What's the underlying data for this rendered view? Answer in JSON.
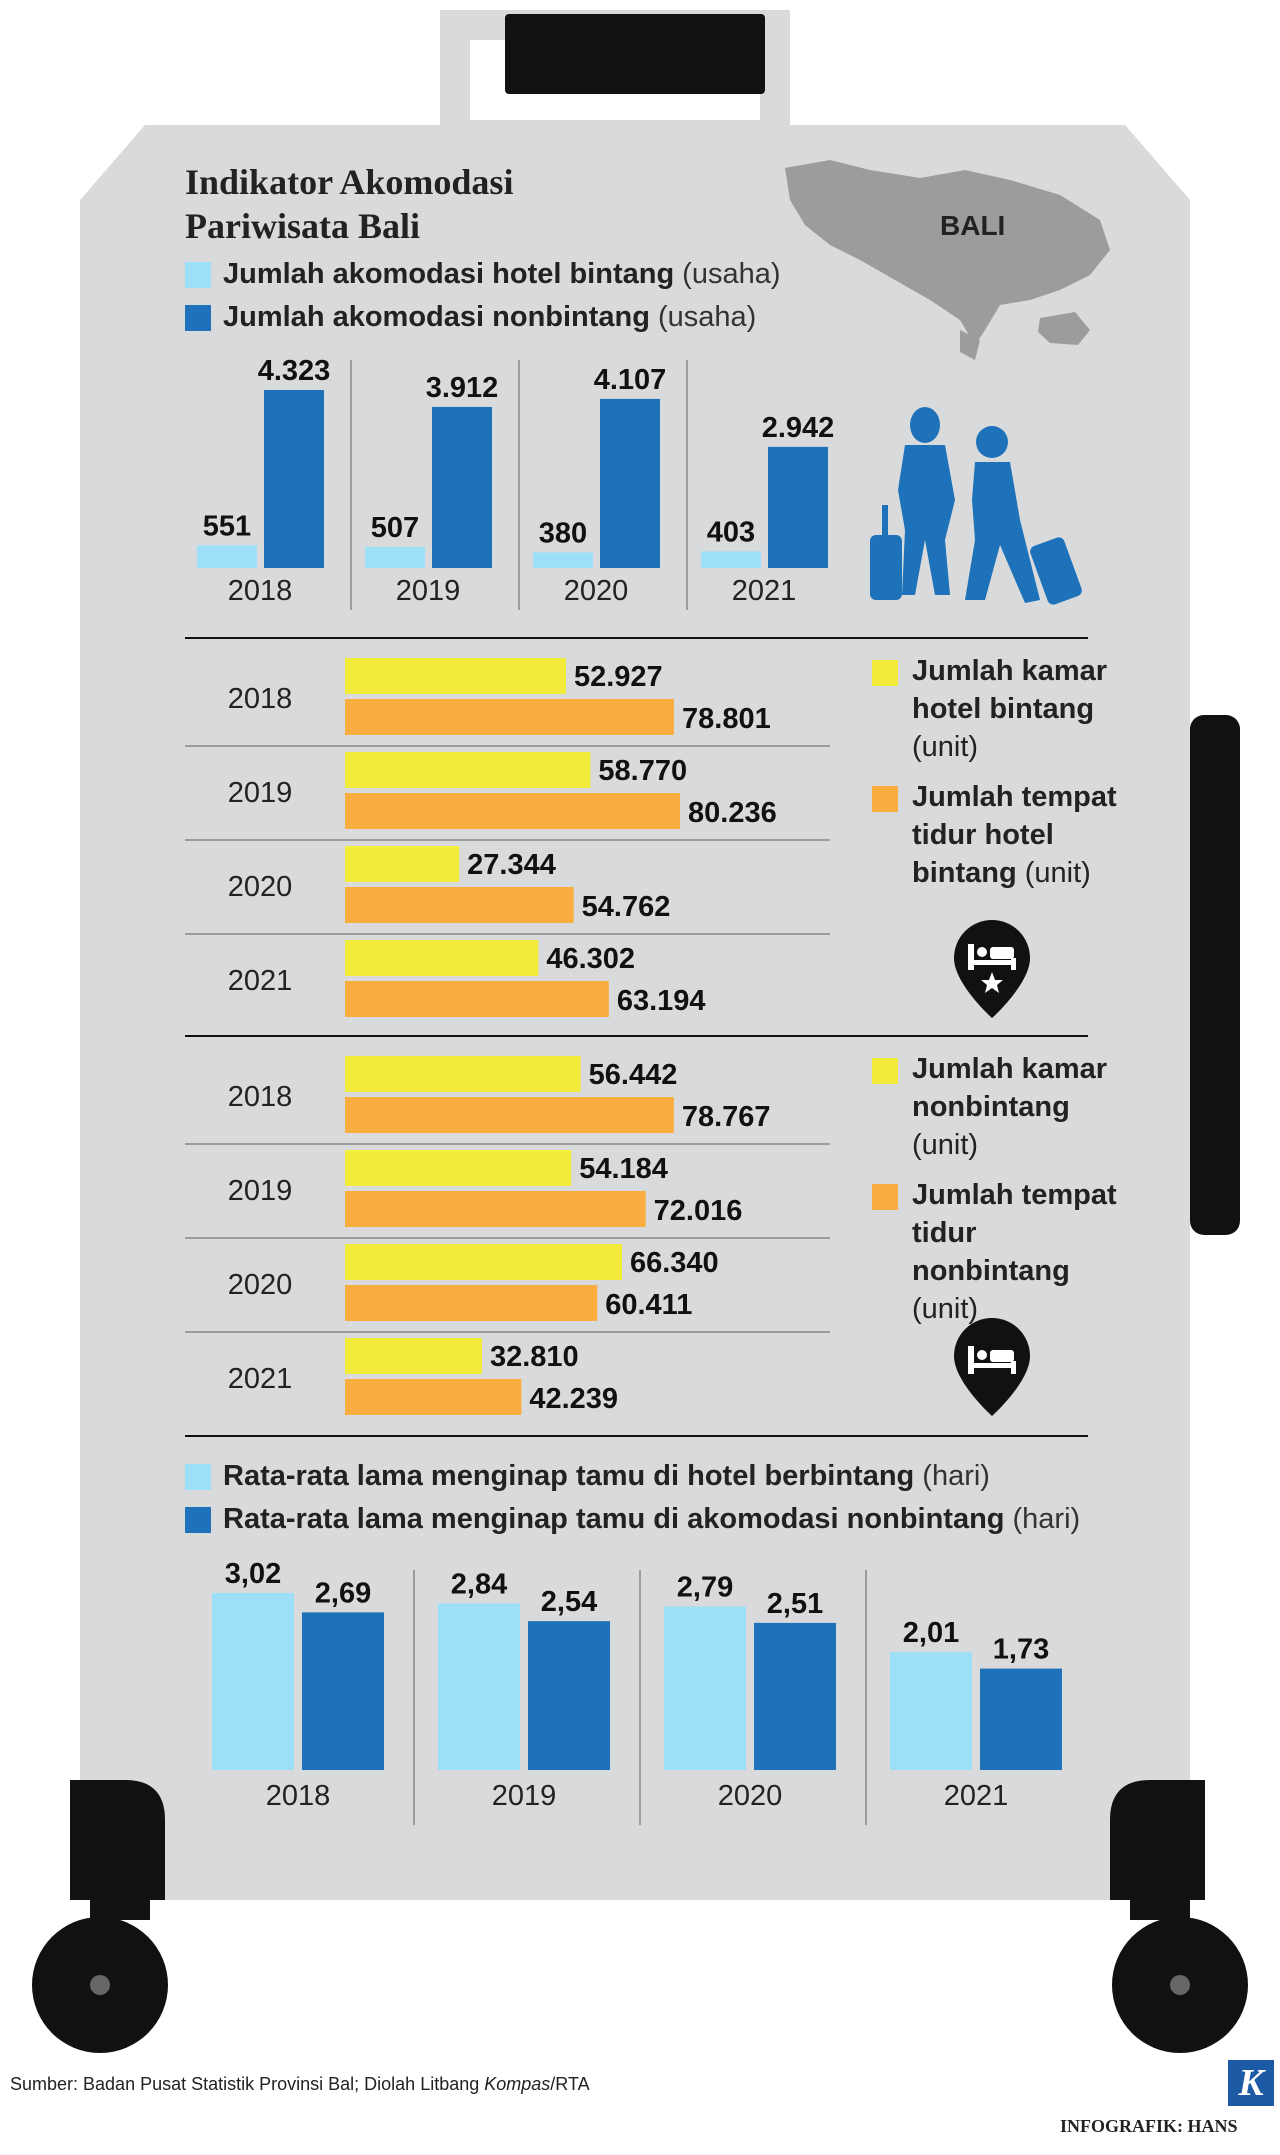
{
  "title": "Indikator Akomodasi Pariwisata Bali",
  "title_lines": [
    "Indikator Akomodasi",
    "Pariwisata Bali"
  ],
  "map_label": "BALI",
  "colors": {
    "light_blue": "#9edff8",
    "dark_blue": "#1e72b9",
    "yellow": "#f4ec3a",
    "orange": "#f9ae3f",
    "suitcase": "#d9dadb",
    "black": "#111111"
  },
  "legend_top": [
    {
      "label": "Jumlah akomodasi hotel bintang",
      "unit": "(usaha)"
    },
    {
      "label": "Jumlah akomodasi nonbintang",
      "unit": "(usaha)"
    }
  ],
  "legend_mid1": [
    {
      "lines": [
        "Jumlah kamar",
        "hotel bintang"
      ],
      "unit": "(unit)"
    },
    {
      "lines": [
        "Jumlah tempat",
        "tidur hotel",
        "bintang"
      ],
      "unit": "(unit)"
    }
  ],
  "legend_mid2": [
    {
      "lines": [
        "Jumlah kamar",
        "nonbintang"
      ],
      "unit": "(unit)"
    },
    {
      "lines": [
        "Jumlah tempat",
        "tidur nonbintang"
      ],
      "unit": "(unit)"
    }
  ],
  "legend_bottom": [
    {
      "label": "Rata-rata lama menginap tamu di hotel berbintang",
      "unit": "(hari)"
    },
    {
      "label": "Rata-rata lama menginap tamu di akomodasi nonbintang",
      "unit": "(hari)"
    }
  ],
  "footer": {
    "source_prefix": "Sumber: Badan Pusat Statistik Provinsi Bal; Diolah Litbang ",
    "source_italic": "Kompas",
    "source_suffix": "/RTA",
    "credit": "INFOGRAFIK: HANS",
    "logo": "K"
  },
  "chart_data": [
    {
      "type": "bar",
      "title": "Jumlah akomodasi",
      "categories": [
        "2018",
        "2019",
        "2020",
        "2021"
      ],
      "series": [
        {
          "name": "Jumlah akomodasi hotel bintang (usaha)",
          "values": [
            551,
            507,
            380,
            403
          ],
          "labels": [
            "551",
            "507",
            "380",
            "403"
          ]
        },
        {
          "name": "Jumlah akomodasi nonbintang (usaha)",
          "values": [
            4323,
            3912,
            4107,
            2942
          ],
          "labels": [
            "4.323",
            "3.912",
            "4.107",
            "2.942"
          ]
        }
      ],
      "ylim": [
        0,
        4500
      ]
    },
    {
      "type": "bar",
      "orientation": "horizontal",
      "title": "Hotel bintang",
      "categories": [
        "2018",
        "2019",
        "2020",
        "2021"
      ],
      "series": [
        {
          "name": "Jumlah kamar hotel bintang (unit)",
          "values": [
            52927,
            58770,
            27344,
            46302
          ],
          "labels": [
            "52.927",
            "58.770",
            "27.344",
            "46.302"
          ]
        },
        {
          "name": "Jumlah tempat tidur hotel bintang (unit)",
          "values": [
            78801,
            80236,
            54762,
            63194
          ],
          "labels": [
            "78.801",
            "80.236",
            "54.762",
            "63.194"
          ]
        }
      ],
      "xlim": [
        0,
        80236
      ]
    },
    {
      "type": "bar",
      "orientation": "horizontal",
      "title": "Nonbintang",
      "categories": [
        "2018",
        "2019",
        "2020",
        "2021"
      ],
      "series": [
        {
          "name": "Jumlah kamar nonbintang (unit)",
          "values": [
            56442,
            54184,
            66340,
            32810
          ],
          "labels": [
            "56.442",
            "54.184",
            "66.340",
            "32.810"
          ]
        },
        {
          "name": "Jumlah tempat tidur nonbintang (unit)",
          "values": [
            78767,
            72016,
            60411,
            42239
          ],
          "labels": [
            "78.767",
            "72.016",
            "60.411",
            "42.239"
          ]
        }
      ],
      "xlim": [
        0,
        80236
      ]
    },
    {
      "type": "bar",
      "title": "Rata-rata lama menginap",
      "categories": [
        "2018",
        "2019",
        "2020",
        "2021"
      ],
      "series": [
        {
          "name": "Rata-rata lama menginap tamu di hotel berbintang (hari)",
          "values": [
            3.02,
            2.84,
            2.79,
            2.01
          ],
          "labels": [
            "3,02",
            "2,84",
            "2,79",
            "2,01"
          ]
        },
        {
          "name": "Rata-rata lama menginap tamu di akomodasi nonbintang (hari)",
          "values": [
            2.69,
            2.54,
            2.51,
            1.73
          ],
          "labels": [
            "2,69",
            "2,54",
            "2,51",
            "1,73"
          ]
        }
      ],
      "ylim": [
        0,
        3.1
      ]
    }
  ]
}
